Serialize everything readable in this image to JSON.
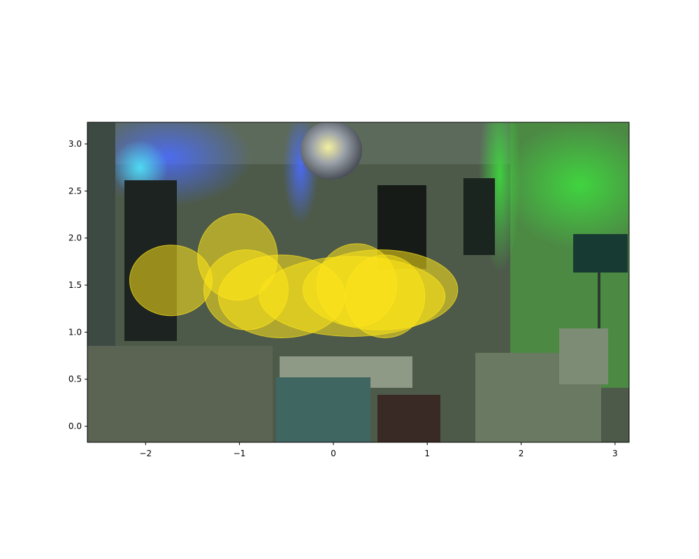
{
  "chart_data": {
    "type": "scatter",
    "title": "",
    "xlabel": "",
    "ylabel": "",
    "xlim": [
      -2.62,
      3.15
    ],
    "ylim": [
      -0.17,
      3.23
    ],
    "xticks": [
      -2,
      -1,
      0,
      1,
      2,
      3
    ],
    "xtick_labels": [
      "−2",
      "−1",
      "0",
      "1",
      "2",
      "3"
    ],
    "yticks": [
      0.0,
      0.5,
      1.0,
      1.5,
      2.0,
      2.5,
      3.0
    ],
    "ytick_labels": [
      "0.0",
      "0.5",
      "1.0",
      "1.5",
      "2.0",
      "2.5",
      "3.0"
    ],
    "grid": false,
    "legend": "none",
    "background": "photo of a living room lit with green, blue and purple lights, disco ball on ceiling",
    "ellipse_color": "#ffe619",
    "ellipse_opacity": 0.55,
    "ellipses": [
      {
        "cx": -1.73,
        "cy": 1.55,
        "rx": 0.88,
        "ry": 0.75
      },
      {
        "cx": -1.02,
        "cy": 1.8,
        "rx": 0.85,
        "ry": 0.92
      },
      {
        "cx": -0.93,
        "cy": 1.45,
        "rx": 0.9,
        "ry": 0.85
      },
      {
        "cx": -0.55,
        "cy": 1.38,
        "rx": 1.35,
        "ry": 0.88
      },
      {
        "cx": 0.2,
        "cy": 1.38,
        "rx": 1.98,
        "ry": 0.85
      },
      {
        "cx": 0.5,
        "cy": 1.45,
        "rx": 1.65,
        "ry": 0.85
      },
      {
        "cx": 0.25,
        "cy": 1.5,
        "rx": 0.85,
        "ry": 0.88
      },
      {
        "cx": 0.55,
        "cy": 1.38,
        "rx": 0.85,
        "ry": 0.88
      }
    ]
  }
}
